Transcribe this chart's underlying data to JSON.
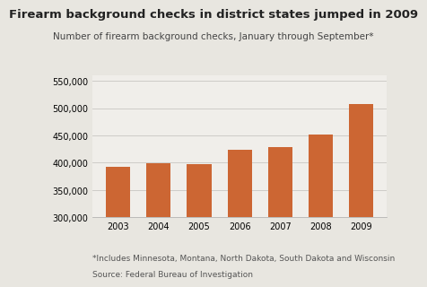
{
  "title": "Firearm background checks in district states jumped in 2009",
  "subtitle": "Number of firearm background checks, January through September*",
  "categories": [
    "2003",
    "2004",
    "2005",
    "2006",
    "2007",
    "2008",
    "2009"
  ],
  "values": [
    392000,
    398000,
    397000,
    424000,
    428000,
    452000,
    507000
  ],
  "bar_color": "#cc6633",
  "background_color": "#e8e6e0",
  "plot_bg_color": "#f0eeea",
  "ylim": [
    300000,
    560000
  ],
  "yticks": [
    300000,
    350000,
    400000,
    450000,
    500000,
    550000
  ],
  "footnote1": "*Includes Minnesota, Montana, North Dakota, South Dakota and Wisconsin",
  "footnote2": "Source: Federal Bureau of Investigation",
  "title_fontsize": 9.5,
  "subtitle_fontsize": 7.5,
  "tick_fontsize": 7.0,
  "footnote_fontsize": 6.5
}
